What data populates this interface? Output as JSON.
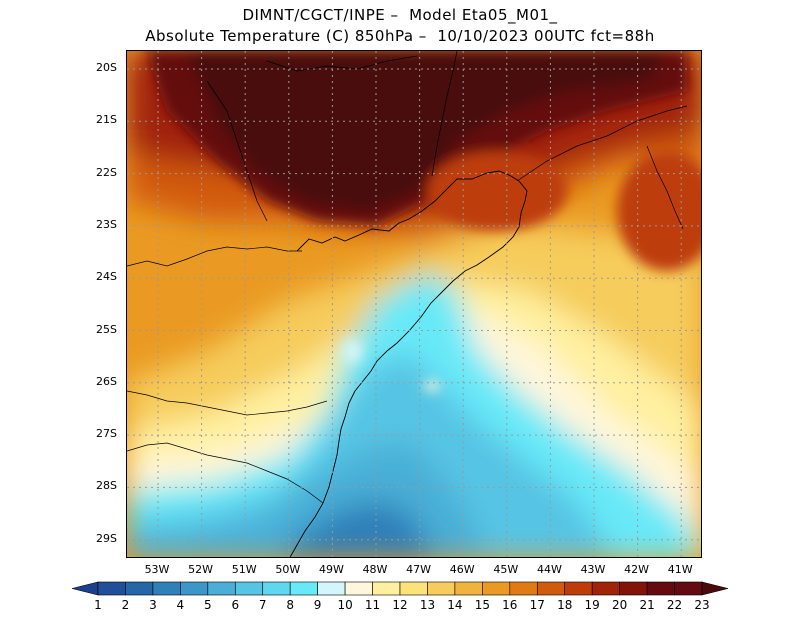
{
  "title_line1": "DIMNT/CGCT/INPE –  Model Eta05_M01_",
  "title_line2": "Absolute Temperature (C) 850hPa –  10/10/2023 00UTC fct=88h",
  "lat_labels": [
    "20S",
    "21S",
    "22S",
    "23S",
    "24S",
    "25S",
    "26S",
    "27S",
    "28S",
    "29S"
  ],
  "lon_labels": [
    "53W",
    "52W",
    "51W",
    "50W",
    "49W",
    "48W",
    "47W",
    "46W",
    "45W",
    "44W",
    "43W",
    "42W",
    "41W"
  ],
  "colorbar": {
    "labels": [
      "1",
      "2",
      "3",
      "4",
      "5",
      "6",
      "7",
      "8",
      "9",
      "10",
      "11",
      "12",
      "13",
      "14",
      "15",
      "16",
      "17",
      "18",
      "19",
      "20",
      "21",
      "22",
      "23"
    ],
    "colors": [
      "#1c3f8c",
      "#1f4e9a",
      "#2566a8",
      "#2f7fb8",
      "#3c97c8",
      "#4aaed6",
      "#56c4e4",
      "#5fd7ee",
      "#68e9f8",
      "#d2f6fb",
      "#fff6dc",
      "#fff0a0",
      "#fde27a",
      "#f6cc5c",
      "#f0b43e",
      "#ea9a22",
      "#e07a12",
      "#d25a0c",
      "#bd3c0a",
      "#a02408",
      "#821408",
      "#640a10",
      "#4a0a0c"
    ]
  },
  "chart_data": {
    "type": "heatmap",
    "variable": "Absolute Temperature (C) 850hPa",
    "x_range": [
      -53.5,
      -40.5
    ],
    "y_range": [
      -29.5,
      -19.8
    ],
    "xlabel": "",
    "ylabel": "",
    "grid": true,
    "color_scale_min": 1,
    "color_scale_max": 23
  }
}
